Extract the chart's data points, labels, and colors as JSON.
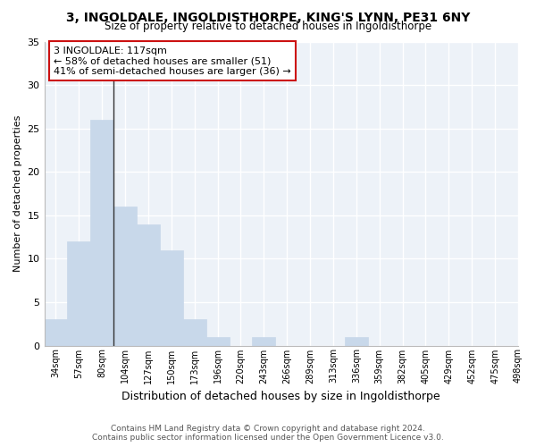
{
  "title": "3, INGOLDALE, INGOLDISTHORPE, KING'S LYNN, PE31 6NY",
  "subtitle": "Size of property relative to detached houses in Ingoldisthorpe",
  "xlabel": "Distribution of detached houses by size in Ingoldisthorpe",
  "ylabel": "Number of detached properties",
  "footer_line1": "Contains HM Land Registry data © Crown copyright and database right 2024.",
  "footer_line2": "Contains public sector information licensed under the Open Government Licence v3.0.",
  "bar_color": "#c8d8ea",
  "bar_edgecolor": "#c8d8ea",
  "annotation_line1": "3 INGOLDALE: 117sqm",
  "annotation_line2": "← 58% of detached houses are smaller (51)",
  "annotation_line3": "41% of semi-detached houses are larger (36) →",
  "annotation_box_facecolor": "#ffffff",
  "annotation_border_color": "#cc1111",
  "vline_color": "#333333",
  "vline_x_bin": 3,
  "background_color": "#ffffff",
  "plot_background_color": "#edf2f8",
  "grid_color": "#ffffff",
  "bin_centers": [
    0.5,
    1.5,
    2.5,
    3.5,
    4.5,
    5.5,
    6.5,
    7.5,
    8.5,
    9.5,
    10.5,
    11.5,
    12.5,
    13.5,
    14.5,
    15.5,
    16.5,
    17.5,
    18.5,
    19.5
  ],
  "bin_labels": [
    "34sqm",
    "57sqm",
    "80sqm",
    "104sqm",
    "127sqm",
    "150sqm",
    "173sqm",
    "196sqm",
    "220sqm",
    "243sqm",
    "266sqm",
    "289sqm",
    "313sqm",
    "336sqm",
    "359sqm",
    "382sqm",
    "405sqm",
    "429sqm",
    "452sqm",
    "475sqm",
    "498sqm"
  ],
  "counts": [
    3,
    12,
    26,
    16,
    14,
    11,
    3,
    1,
    0,
    1,
    0,
    0,
    0,
    1,
    0,
    0,
    0,
    0,
    0,
    0
  ],
  "ylim": [
    0,
    35
  ],
  "yticks": [
    0,
    5,
    10,
    15,
    20,
    25,
    30,
    35
  ],
  "num_bins": 20
}
